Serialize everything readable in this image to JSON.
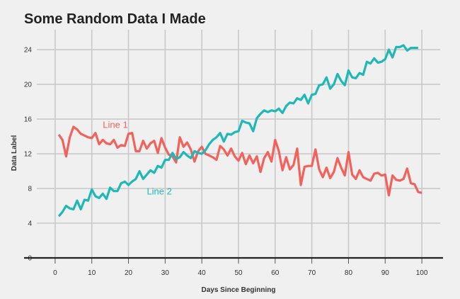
{
  "chart_data": {
    "type": "line",
    "title": "Some Random Data I Made",
    "xlabel": "Days Since Beginning",
    "ylabel": "Data Label",
    "xlim": [
      -5,
      105
    ],
    "ylim": [
      0,
      25.8
    ],
    "xticks": [
      "0",
      "10",
      "20",
      "30",
      "40",
      "50",
      "60",
      "70",
      "80",
      "90",
      "100"
    ],
    "yticks": [
      "0",
      "4",
      "8",
      "12",
      "16",
      "20",
      "24"
    ],
    "grid": true,
    "legend": "none",
    "series": [
      {
        "name": "Line 1",
        "color": "#f2625a",
        "label_at": [
          13,
          15
        ],
        "x": [
          1,
          2,
          3,
          4,
          5,
          6,
          7,
          8,
          9,
          10,
          11,
          12,
          13,
          14,
          15,
          16,
          17,
          18,
          19,
          20,
          21,
          22,
          23,
          24,
          25,
          26,
          27,
          28,
          29,
          30,
          31,
          32,
          33,
          34,
          35,
          36,
          37,
          38,
          39,
          40,
          41,
          42,
          43,
          44,
          45,
          46,
          47,
          48,
          49,
          50,
          51,
          52,
          53,
          54,
          55,
          56,
          57,
          58,
          59,
          60,
          61,
          62,
          63,
          64,
          65,
          66,
          67,
          68,
          69,
          70,
          71,
          72,
          73,
          74,
          75,
          76,
          77,
          78,
          79,
          80,
          81,
          82,
          83,
          84,
          85,
          86,
          87,
          88,
          89,
          90,
          91,
          92,
          93,
          94,
          95,
          96,
          97,
          98,
          99,
          100
        ],
        "y": [
          14.2,
          13.6,
          11.7,
          13.9,
          15.1,
          14.8,
          14.3,
          14.1,
          13.9,
          13.8,
          14.4,
          13.1,
          13.6,
          13.2,
          13.1,
          13.6,
          12.7,
          13.0,
          12.9,
          14.3,
          14.4,
          12.3,
          12.3,
          13.5,
          12.6,
          13.2,
          13.5,
          12.1,
          13.8,
          12.7,
          11.9,
          11.7,
          11.0,
          13.9,
          12.8,
          13.3,
          12.5,
          11.1,
          12.3,
          12.8,
          12.0,
          11.8,
          11.6,
          11.3,
          12.9,
          12.5,
          11.8,
          12.6,
          11.7,
          11.2,
          12.1,
          10.8,
          11.8,
          10.9,
          11.7,
          9.9,
          11.5,
          12.2,
          11.1,
          13.6,
          12.3,
          10.1,
          11.6,
          10.2,
          10.7,
          12.6,
          8.4,
          10.5,
          10.6,
          10.6,
          12.5,
          10.2,
          9.3,
          10.4,
          9.2,
          9.9,
          11.5,
          10.4,
          9.5,
          12.2,
          9.6,
          9.1,
          10.1,
          9.3,
          9.1,
          8.9,
          9.7,
          9.8,
          9.5,
          9.6,
          7.2,
          9.5,
          9.0,
          8.9,
          9.1,
          10.3,
          8.6,
          8.5,
          7.6,
          7.5
        ],
        "truncate_last": true
      },
      {
        "name": "Line 2",
        "color": "#1fb8b8",
        "label_at": [
          25,
          7.3
        ],
        "x": [
          1,
          2,
          3,
          4,
          5,
          6,
          7,
          8,
          9,
          10,
          11,
          12,
          13,
          14,
          15,
          16,
          17,
          18,
          19,
          20,
          21,
          22,
          23,
          24,
          25,
          26,
          27,
          28,
          29,
          30,
          31,
          32,
          33,
          34,
          35,
          36,
          37,
          38,
          39,
          40,
          41,
          42,
          43,
          44,
          45,
          46,
          47,
          48,
          49,
          50,
          51,
          52,
          53,
          54,
          55,
          56,
          57,
          58,
          59,
          60,
          61,
          62,
          63,
          64,
          65,
          66,
          67,
          68,
          69,
          70,
          71,
          72,
          73,
          74,
          75,
          76,
          77,
          78,
          79,
          80,
          81,
          82,
          83,
          84,
          85,
          86,
          87,
          88,
          89,
          90,
          91,
          92,
          93,
          94,
          95,
          96,
          97,
          98,
          99
        ],
        "y": [
          4.8,
          5.3,
          6.0,
          5.7,
          5.6,
          6.6,
          5.6,
          6.7,
          6.6,
          7.9,
          7.1,
          6.9,
          7.4,
          6.8,
          8.1,
          7.7,
          7.7,
          8.6,
          8.8,
          8.4,
          8.8,
          9.1,
          10.0,
          9.1,
          9.6,
          10.1,
          9.8,
          10.6,
          10.4,
          11.3,
          11.3,
          12.1,
          11.4,
          11.6,
          12.2,
          11.8,
          11.5,
          12.3,
          12.1,
          12.0,
          12.4,
          13.1,
          13.6,
          13.9,
          14.4,
          13.4,
          14.3,
          14.2,
          14.5,
          14.6,
          15.8,
          15.6,
          15.5,
          14.6,
          16.1,
          16.6,
          17.0,
          16.8,
          17.0,
          16.9,
          17.2,
          16.7,
          17.5,
          17.9,
          17.8,
          18.4,
          18.2,
          18.8,
          17.8,
          18.8,
          18.9,
          19.9,
          20.0,
          20.8,
          19.5,
          20.0,
          21.2,
          20.4,
          19.9,
          21.6,
          20.8,
          20.7,
          21.3,
          21.1,
          22.6,
          22.4,
          23.0,
          22.5,
          22.6,
          22.9,
          24.0,
          23.1,
          24.3,
          24.3,
          24.5,
          23.9,
          24.2,
          24.2,
          24.2
        ]
      }
    ]
  }
}
